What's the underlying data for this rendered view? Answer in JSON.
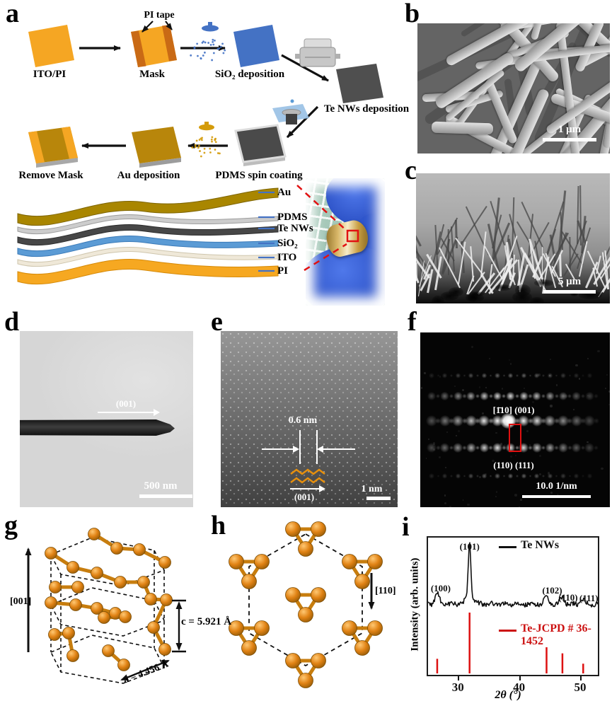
{
  "panels": {
    "a": {
      "label": "a",
      "step_itopi": "ITO/PI",
      "step_mask": "Mask",
      "mask_annotation": "PI tape",
      "step_sio2": "SiO₂ deposition",
      "step_tenws": "Te NWs deposition",
      "step_pdms": "PDMS spin coating",
      "step_au": "Au deposition",
      "step_remove": "Remove Mask",
      "stack_labels": {
        "au": "Au",
        "pdms": "PDMS",
        "tenws": "Te NWs",
        "sio2": "SiO₂",
        "ito": "ITO",
        "pi": "PI"
      },
      "colors": {
        "pi_orange": "#f5a623",
        "mask_tape": "#c96a15",
        "sio2_blue": "#4472c4",
        "te_gray": "#4f4f4f",
        "au_gold": "#b8860b",
        "leader_blue": "#4472c4",
        "callout_red": "#e21212"
      }
    },
    "b": {
      "label": "b",
      "scale_bar": "1 μm"
    },
    "c": {
      "label": "c",
      "scale_bar": "5 μm"
    },
    "d": {
      "label": "d",
      "growth_direction": "(001)",
      "scale_bar": "500 nm"
    },
    "e": {
      "label": "e",
      "lattice_spacing": "0.6 nm",
      "growth_direction": "(001)",
      "scale_bar": "1 nm"
    },
    "f": {
      "label": "f",
      "zone_axis": "[1̄10] (001)",
      "planes": "(110)  (111)",
      "scale_bar": "10.0 1/nm"
    },
    "g": {
      "label": "g",
      "axis": "[001]",
      "c_param": "c = 5.921 Å",
      "a_param": "a = 4.456 Å",
      "atom_color": "#e08214"
    },
    "h": {
      "label": "h",
      "axis": "[110]"
    },
    "i": {
      "label": "i"
    }
  },
  "chart_data": {
    "type": "line",
    "title": "",
    "xlabel": "2θ (°)",
    "ylabel": "Intensity (arb. units)",
    "xlim": [
      25,
      53
    ],
    "xticks": [
      30,
      40,
      50
    ],
    "grid": false,
    "legend": [
      {
        "name": "Te NWs",
        "color": "#111111"
      },
      {
        "name": "Te-JCPD # 36-1452",
        "color": "#cc1111"
      }
    ],
    "series": [
      {
        "name": "Te NWs",
        "style": "noisy-line",
        "peaks": [
          {
            "label": "(100)",
            "two_theta": 26.6,
            "rel_intensity": 0.18
          },
          {
            "label": "(101)",
            "two_theta": 31.9,
            "rel_intensity": 1.0
          },
          {
            "label": "(102)",
            "two_theta": 44.5,
            "rel_intensity": 0.13
          },
          {
            "label": "(110)",
            "two_theta": 47.1,
            "rel_intensity": 0.11
          },
          {
            "label": "(111)",
            "two_theta": 50.5,
            "rel_intensity": 0.08
          }
        ]
      },
      {
        "name": "Te-JCPD # 36-1452",
        "style": "stick",
        "sticks": [
          {
            "two_theta": 26.6,
            "rel_intensity": 0.24
          },
          {
            "two_theta": 31.9,
            "rel_intensity": 1.0
          },
          {
            "two_theta": 44.5,
            "rel_intensity": 0.43
          },
          {
            "two_theta": 47.1,
            "rel_intensity": 0.33
          },
          {
            "two_theta": 50.5,
            "rel_intensity": 0.16
          }
        ]
      }
    ]
  }
}
